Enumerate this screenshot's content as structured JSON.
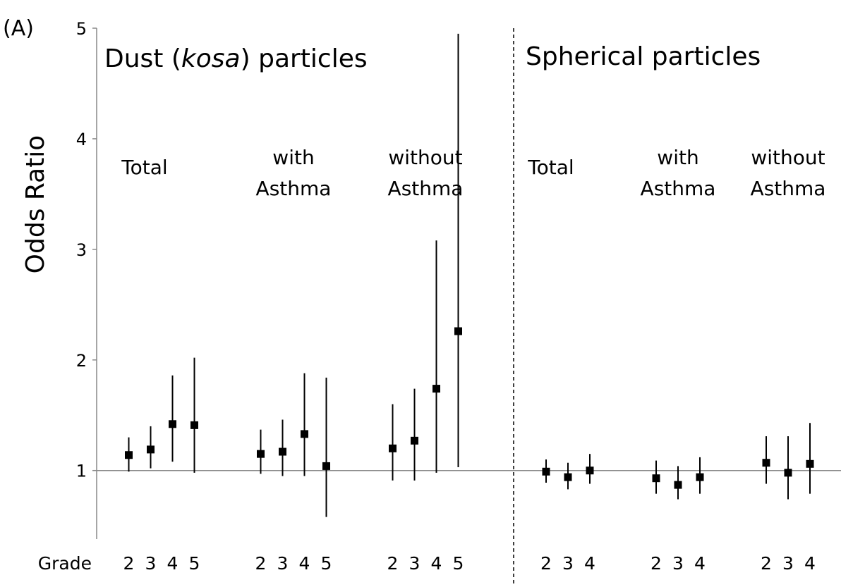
{
  "chart_data": {
    "type": "errorbar",
    "panel_label": "(A)",
    "y_label": "Odds Ratio",
    "x_label": "Grade",
    "ylim": [
      0.38,
      5
    ],
    "yticks": [
      1,
      2,
      3,
      4,
      5
    ],
    "reference_line": 1,
    "color": "#000000",
    "panels": [
      {
        "title_parts": [
          "Dust (",
          "kosa",
          ") particles"
        ],
        "groups": [
          {
            "label": [
              "Total"
            ],
            "categories": [
              "2",
              "3",
              "4",
              "5"
            ],
            "values": [
              1.14,
              1.19,
              1.42,
              1.41
            ],
            "lower": [
              0.99,
              1.02,
              1.08,
              0.98
            ],
            "upper": [
              1.3,
              1.4,
              1.86,
              2.02
            ]
          },
          {
            "label": [
              "with",
              "Asthma"
            ],
            "categories": [
              "2",
              "3",
              "4",
              "5"
            ],
            "values": [
              1.15,
              1.17,
              1.33,
              1.04
            ],
            "lower": [
              0.97,
              0.95,
              0.95,
              0.58
            ],
            "upper": [
              1.37,
              1.46,
              1.88,
              1.84
            ]
          },
          {
            "label": [
              "without",
              "Asthma"
            ],
            "categories": [
              "2",
              "3",
              "4",
              "5"
            ],
            "values": [
              1.2,
              1.27,
              1.74,
              2.26
            ],
            "lower": [
              0.91,
              0.91,
              0.98,
              1.03
            ],
            "upper": [
              1.6,
              1.74,
              3.08,
              4.95
            ]
          }
        ]
      },
      {
        "title_parts": [
          "Spherical particles"
        ],
        "groups": [
          {
            "label": [
              "Total"
            ],
            "categories": [
              "2",
              "3",
              "4"
            ],
            "values": [
              0.99,
              0.94,
              1.0
            ],
            "lower": [
              0.89,
              0.83,
              0.88
            ],
            "upper": [
              1.1,
              1.07,
              1.15
            ]
          },
          {
            "label": [
              "with",
              "Asthma"
            ],
            "categories": [
              "2",
              "3",
              "4"
            ],
            "values": [
              0.93,
              0.87,
              0.94
            ],
            "lower": [
              0.79,
              0.74,
              0.79
            ],
            "upper": [
              1.09,
              1.04,
              1.12
            ]
          },
          {
            "label": [
              "without",
              "Asthma"
            ],
            "categories": [
              "2",
              "3",
              "4"
            ],
            "values": [
              1.07,
              0.98,
              1.06
            ],
            "lower": [
              0.88,
              0.74,
              0.79
            ],
            "upper": [
              1.31,
              1.31,
              1.43
            ]
          }
        ]
      }
    ]
  }
}
